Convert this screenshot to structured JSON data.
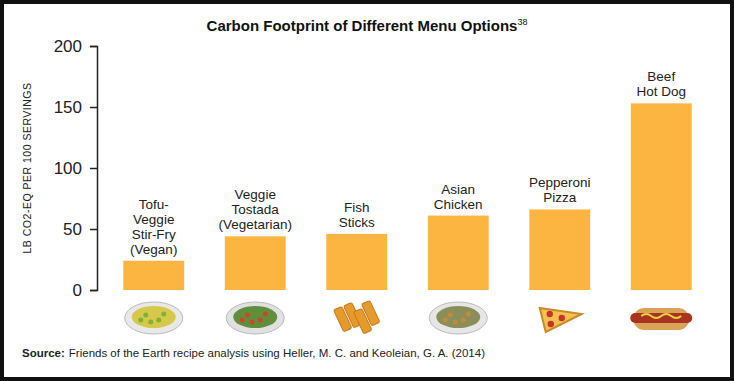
{
  "chart_data": {
    "type": "bar",
    "title": "Carbon Footprint of Different Menu Options",
    "title_footnote": "38",
    "y_label": "LB CO2-EQ PER 100 SERVINGS",
    "categories": [
      "Tofu-\nVeggie\nStir-Fry\n(Vegan)",
      "Veggie\nTostada\n(Vegetarian)",
      "Fish\nSticks",
      "Asian\nChicken",
      "Pepperoni\nPizza",
      "Beef\nHot Dog"
    ],
    "values": [
      24,
      44,
      46,
      61,
      66,
      153
    ],
    "color": "#fdb541",
    "ylim": [
      0,
      200
    ],
    "yticks": [
      0,
      50,
      100,
      150,
      200
    ],
    "grid": false,
    "source_label": "Source:",
    "source": "Friends of the Earth recipe analysis using Heller, M. C. and Keoleian, G. A. (2014)"
  }
}
